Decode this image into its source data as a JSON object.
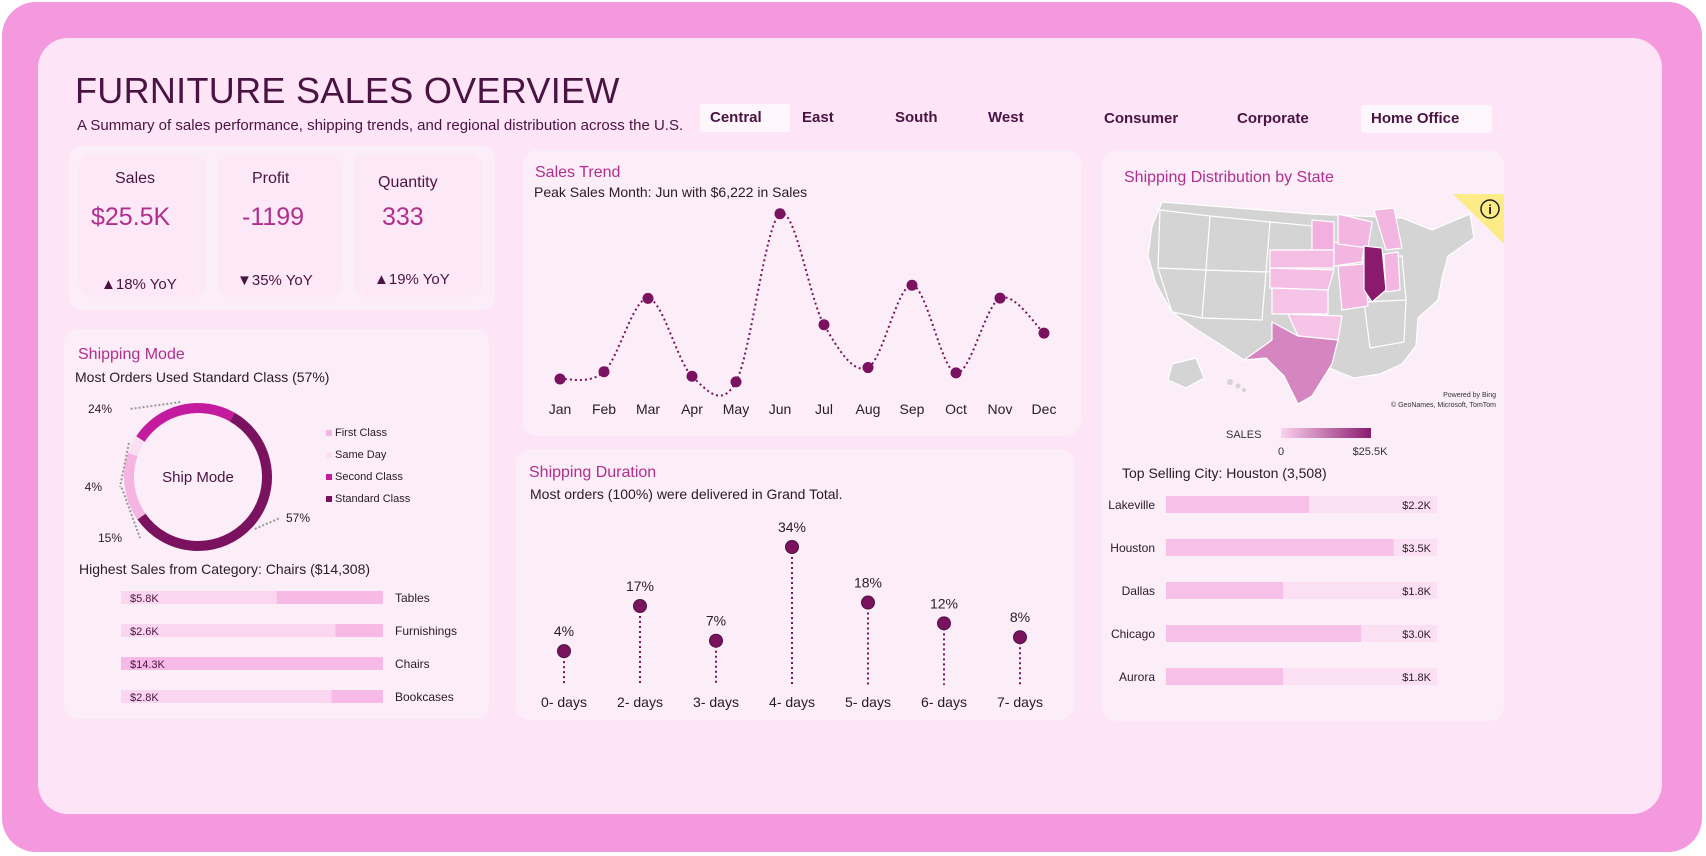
{
  "header": {
    "title": "FURNITURE SALES OVERVIEW",
    "subtitle": "A Summary of sales performance, shipping trends, and regional distribution across the U.S."
  },
  "slicers": {
    "region": [
      {
        "label": "Central",
        "selected": true
      },
      {
        "label": "East",
        "selected": false
      },
      {
        "label": "South",
        "selected": false
      },
      {
        "label": "West",
        "selected": false
      }
    ],
    "segment": [
      {
        "label": "Consumer",
        "selected": false
      },
      {
        "label": "Corporate",
        "selected": false
      },
      {
        "label": "Home Office",
        "selected": true
      }
    ]
  },
  "kpis": [
    {
      "label": "Sales",
      "value": "$25.5K",
      "yoy": "▲18% YoY"
    },
    {
      "label": "Profit",
      "value": "-1199",
      "yoy": "▼35% YoY"
    },
    {
      "label": "Quantity",
      "value": "333",
      "yoy": "▲19% YoY"
    }
  ],
  "shipping_mode": {
    "title": "Shipping Mode",
    "subtitle": "Most Orders Used Standard Class (57%)",
    "center_label": "Ship Mode",
    "category_title": "Highest Sales from Category: Chairs ($14,308)"
  },
  "sales_trend": {
    "title": "Sales Trend",
    "subtitle": "Peak Sales Month: Jun with $6,222 in Sales"
  },
  "shipping_duration": {
    "title": "Shipping Duration",
    "subtitle": "Most orders (100%) were delivered in Grand Total."
  },
  "map": {
    "title": "Shipping Distribution by State",
    "legend_title": "SALES",
    "legend_min": "0",
    "legend_max": "$25.5K",
    "credit_1": "Powered by Bing",
    "credit_2": "© GeoNames, Microsoft, TomTom",
    "city_title": "Top Selling City: Houston (3,508)"
  },
  "colors": {
    "dark_plum": "#7a1260",
    "magenta": "#c41b9e",
    "light_pink": "#f7c0e8",
    "pale_pink": "#fde4f6"
  },
  "chart_data": [
    {
      "type": "pie",
      "name": "Ship Mode",
      "categories": [
        "First Class",
        "Same Day",
        "Second Class",
        "Standard Class"
      ],
      "values": [
        15,
        4,
        24,
        57
      ],
      "labels": [
        "15%",
        "4%",
        "24%",
        "57%"
      ],
      "colors": [
        "#f5b5e2",
        "#fbe0f3",
        "#c41b9e",
        "#7a1260"
      ]
    },
    {
      "type": "bar",
      "name": "Category Sales",
      "categories": [
        "Tables",
        "Furnishings",
        "Chairs",
        "Bookcases"
      ],
      "values": [
        5.8,
        2.6,
        14.3,
        2.8
      ],
      "value_labels": [
        "$5.8K",
        "$2.6K",
        "$14.3K",
        "$2.8K"
      ],
      "xlim": [
        0,
        14.3
      ]
    },
    {
      "type": "line",
      "name": "Sales Trend",
      "categories": [
        "Jan",
        "Feb",
        "Mar",
        "Apr",
        "May",
        "Jun",
        "Jul",
        "Aug",
        "Sep",
        "Oct",
        "Nov",
        "Dec"
      ],
      "values": [
        320,
        580,
        3200,
        420,
        220,
        6222,
        2260,
        730,
        3670,
        540,
        3210,
        1960
      ],
      "ylim": [
        0,
        6500
      ]
    },
    {
      "type": "scatter",
      "name": "Shipping Duration",
      "categories": [
        "0- days",
        "2- days",
        "3- days",
        "4- days",
        "5- days",
        "6- days",
        "7- days"
      ],
      "values": [
        4,
        17,
        7,
        34,
        18,
        12,
        8
      ],
      "labels": [
        "4%",
        "17%",
        "7%",
        "34%",
        "18%",
        "12%",
        "8%"
      ],
      "ylim": [
        0,
        34
      ]
    },
    {
      "type": "bar",
      "name": "Top Cities",
      "categories": [
        "Lakeville",
        "Houston",
        "Dallas",
        "Chicago",
        "Aurora"
      ],
      "values": [
        2.2,
        3.5,
        1.8,
        3.0,
        1.8
      ],
      "value_labels": [
        "$2.2K",
        "$3.5K",
        "$1.8K",
        "$3.0K",
        "$1.8K"
      ],
      "xlim": [
        0,
        3.5
      ]
    }
  ]
}
